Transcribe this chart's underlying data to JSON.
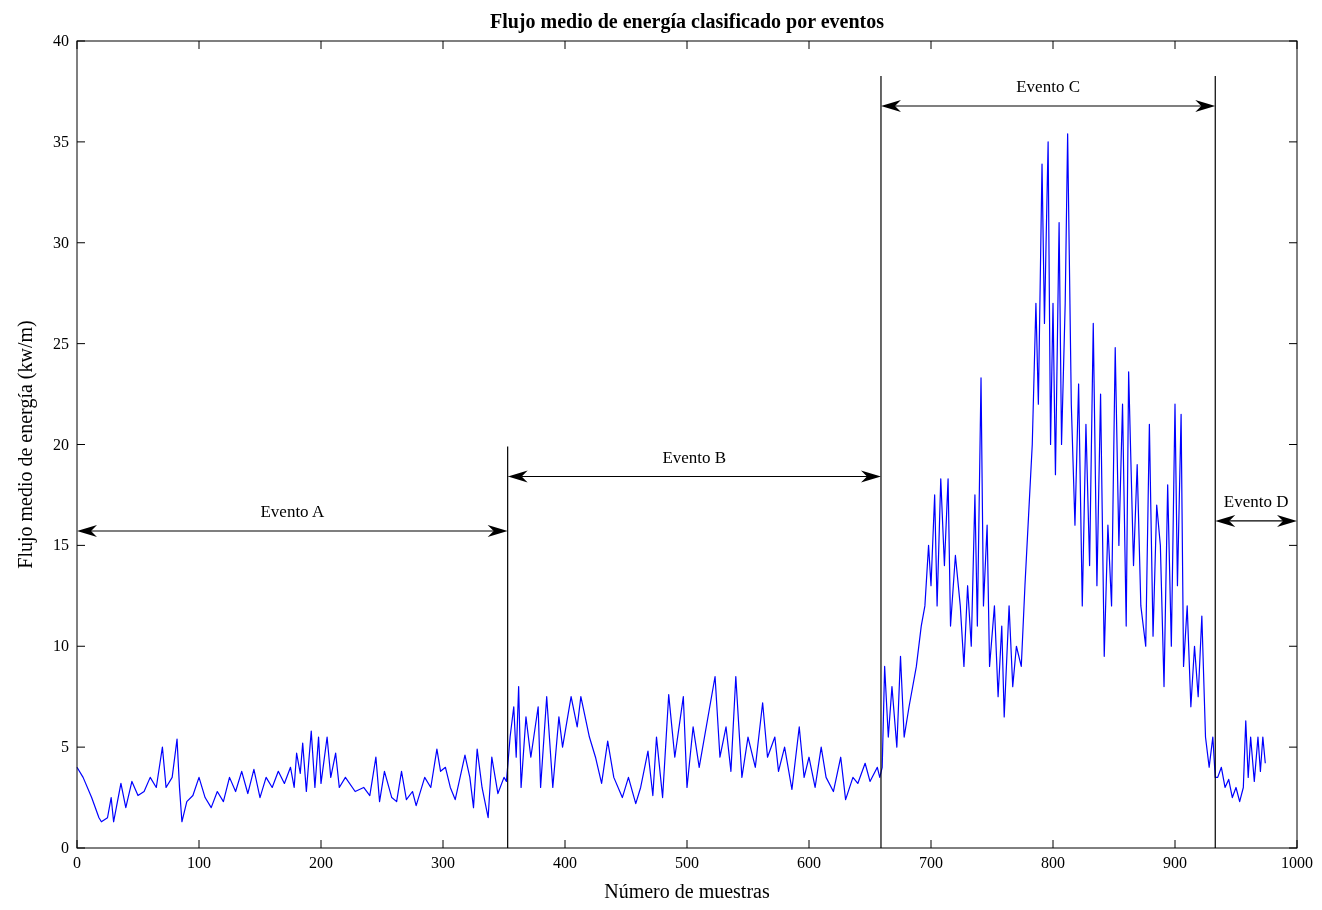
{
  "chart_data": {
    "type": "line",
    "title": "Flujo medio de energía clasificado por eventos",
    "xlabel": "Número de muestras",
    "ylabel": "Flujo medio de energía (kw/m)",
    "xlim": [
      0,
      1000
    ],
    "xticks": [
      0,
      100,
      200,
      300,
      400,
      500,
      600,
      700,
      800,
      900,
      1000
    ],
    "ylim": [
      0,
      40
    ],
    "yticks": [
      0,
      5,
      10,
      15,
      20,
      25,
      30,
      35,
      40
    ],
    "grid": false,
    "marker": "none",
    "line_style": "solid",
    "ref_lines": [
      {
        "axis": "x",
        "value": 353,
        "color": "#000000"
      },
      {
        "axis": "x",
        "value": 659,
        "color": "#000000"
      },
      {
        "axis": "x",
        "value": 933,
        "color": "#000000"
      }
    ],
    "annotations": [
      "Evento A",
      "Evento B",
      "Evento C",
      "Evento D"
    ],
    "series": [
      {
        "color": "#0000ff",
        "x": [
          0,
          5,
          12,
          18,
          20,
          25,
          28,
          30,
          36,
          40,
          45,
          50,
          55,
          60,
          65,
          68,
          70,
          73,
          78,
          82,
          84,
          86,
          90,
          95,
          100,
          105,
          110,
          115,
          120,
          125,
          130,
          135,
          140,
          145,
          150,
          155,
          160,
          165,
          170,
          175,
          178,
          180,
          183,
          185,
          188,
          192,
          195,
          198,
          200,
          205,
          208,
          212,
          215,
          220,
          228,
          235,
          240,
          245,
          248,
          252,
          258,
          262,
          266,
          270,
          275,
          278,
          285,
          290,
          295,
          298,
          302,
          306,
          310,
          318,
          322,
          325,
          328,
          332,
          337,
          340,
          345,
          350,
          352,
          355,
          358,
          360,
          362,
          364,
          368,
          372,
          378,
          380,
          385,
          390,
          395,
          398,
          405,
          410,
          413,
          420,
          425,
          430,
          435,
          440,
          447,
          452,
          458,
          462,
          468,
          472,
          475,
          480,
          485,
          490,
          497,
          500,
          505,
          510,
          523,
          527,
          532,
          536,
          540,
          545,
          550,
          556,
          562,
          566,
          572,
          575,
          580,
          586,
          592,
          596,
          600,
          605,
          610,
          614,
          620,
          626,
          630,
          636,
          640,
          646,
          650,
          656,
          658,
          660,
          662,
          665,
          668,
          672,
          675,
          678,
          682,
          688,
          692,
          695,
          698,
          700,
          703,
          705,
          708,
          711,
          714,
          716,
          720,
          724,
          727,
          730,
          733,
          736,
          738,
          741,
          743,
          746,
          748,
          752,
          755,
          758,
          760,
          764,
          767,
          770,
          774,
          777,
          780,
          783,
          786,
          788,
          791,
          793,
          796,
          798,
          800,
          802,
          805,
          807,
          810,
          812,
          815,
          818,
          821,
          824,
          827,
          830,
          833,
          836,
          839,
          842,
          845,
          848,
          851,
          854,
          857,
          860,
          862,
          866,
          869,
          872,
          876,
          879,
          882,
          885,
          888,
          891,
          894,
          897,
          900,
          902,
          905,
          907,
          910,
          913,
          916,
          919,
          922,
          925,
          928,
          931,
          933,
          935,
          938,
          941,
          944,
          947,
          950,
          953,
          956,
          958,
          960,
          962,
          965,
          968,
          970,
          972,
          974
        ],
        "values": [
          4.0,
          3.5,
          2.5,
          1.5,
          1.3,
          1.5,
          2.5,
          1.3,
          3.2,
          2.0,
          3.3,
          2.6,
          2.8,
          3.5,
          3.0,
          4.2,
          5.0,
          3.0,
          3.5,
          5.4,
          3.0,
          1.3,
          2.3,
          2.6,
          3.5,
          2.5,
          2.0,
          2.8,
          2.3,
          3.5,
          2.8,
          3.8,
          2.7,
          3.9,
          2.5,
          3.5,
          3.0,
          3.8,
          3.2,
          4.0,
          3.0,
          4.7,
          3.7,
          5.2,
          2.8,
          5.8,
          3.0,
          5.5,
          3.2,
          5.5,
          3.5,
          4.7,
          3.0,
          3.5,
          2.8,
          3.0,
          2.6,
          4.5,
          2.3,
          3.8,
          2.5,
          2.3,
          3.8,
          2.4,
          2.8,
          2.1,
          3.5,
          3.0,
          4.9,
          3.8,
          4.0,
          3.0,
          2.4,
          4.6,
          3.5,
          2.0,
          4.9,
          3.0,
          1.5,
          4.5,
          2.7,
          3.5,
          3.3,
          5.5,
          7.0,
          4.5,
          8.0,
          3.0,
          6.5,
          4.5,
          7.0,
          3.0,
          7.5,
          3.0,
          6.5,
          5.0,
          7.5,
          6.0,
          7.5,
          5.5,
          4.5,
          3.2,
          5.3,
          3.5,
          2.5,
          3.5,
          2.2,
          3.0,
          4.8,
          2.6,
          5.5,
          2.5,
          7.6,
          4.5,
          7.5,
          3.0,
          6.0,
          4.0,
          8.5,
          4.5,
          6.0,
          3.8,
          8.5,
          3.5,
          5.5,
          4.0,
          7.2,
          4.5,
          5.5,
          3.8,
          5.0,
          2.9,
          6.0,
          3.5,
          4.5,
          3.0,
          5.0,
          3.5,
          2.8,
          4.5,
          2.4,
          3.5,
          3.2,
          4.2,
          3.3,
          4.0,
          3.5,
          4.0,
          9.0,
          5.5,
          8.0,
          5.0,
          9.5,
          5.5,
          7.0,
          9.0,
          11.0,
          12.0,
          15.0,
          13.0,
          17.5,
          12.0,
          18.3,
          14.0,
          18.3,
          11.0,
          14.5,
          12.0,
          9.0,
          13.0,
          10.0,
          17.5,
          11.0,
          23.3,
          12.0,
          16.0,
          9.0,
          12.0,
          7.5,
          11.0,
          6.5,
          12.0,
          8.0,
          10.0,
          9.0,
          13.0,
          16.5,
          20.0,
          27.0,
          22.0,
          33.9,
          26.0,
          35.0,
          20.0,
          27.0,
          18.5,
          31.0,
          20.0,
          27.0,
          35.4,
          22.0,
          16.0,
          23.0,
          12.0,
          21.0,
          14.0,
          26.0,
          13.0,
          22.5,
          9.5,
          16.0,
          12.0,
          24.8,
          15.0,
          22.0,
          11.0,
          23.6,
          14.0,
          19.0,
          12.0,
          10.0,
          21.0,
          10.5,
          17.0,
          15.0,
          8.0,
          18.0,
          10.0,
          22.0,
          13.0,
          21.5,
          9.0,
          12.0,
          7.0,
          10.0,
          7.5,
          11.5,
          5.5,
          4.0,
          5.5,
          3.5,
          3.5,
          4.0,
          3.0,
          3.4,
          2.5,
          3.0,
          2.3,
          3.0,
          6.3,
          3.5,
          5.5,
          3.3,
          5.5,
          3.8,
          5.5,
          4.2
        ]
      }
    ]
  }
}
